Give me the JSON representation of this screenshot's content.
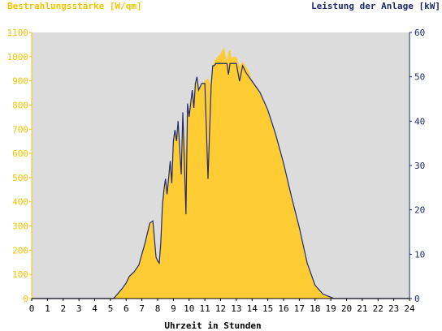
{
  "chart_data": {
    "type": "area",
    "title_left": "Bestrahlungsstärke [W/qm]",
    "title_right": "Leistung der Anlage [kW]",
    "xlabel": "Uhrzeit in Stunden",
    "xlim": [
      0,
      24
    ],
    "ylim_left": [
      0,
      1100
    ],
    "ylim_right": [
      0,
      60
    ],
    "x_ticks": [
      0,
      1,
      2,
      3,
      4,
      5,
      6,
      7,
      8,
      9,
      10,
      11,
      12,
      13,
      14,
      15,
      16,
      17,
      18,
      19,
      20,
      21,
      22,
      23,
      24
    ],
    "y_ticks_left": [
      0,
      100,
      200,
      300,
      400,
      500,
      600,
      700,
      800,
      900,
      1000,
      1100
    ],
    "y_ticks_right": [
      0,
      10,
      20,
      30,
      40,
      50,
      60
    ],
    "grid": false,
    "plot_background": "#dcdcdc",
    "colors": {
      "irradiance": "#ffcc33",
      "power": "#1f2a6e",
      "left_axis": "#f5c400",
      "right_axis": "#1f2a6e"
    },
    "series": [
      {
        "axis": "left",
        "x": [
          0,
          5.2,
          5.5,
          5.8,
          6.0,
          6.2,
          6.5,
          6.8,
          7.0,
          7.2,
          7.5,
          7.7,
          7.9,
          8.0,
          8.1,
          8.2,
          8.3,
          8.4,
          8.5,
          8.6,
          8.8,
          8.9,
          9.0,
          9.1,
          9.2,
          9.3,
          9.5,
          9.6,
          9.8,
          9.9,
          10.0,
          10.2,
          10.3,
          10.4,
          10.5,
          10.6,
          10.8,
          11.0,
          11.2,
          11.4,
          11.5,
          11.6,
          11.7,
          11.8,
          12.0,
          12.2,
          12.4,
          12.5,
          12.6,
          12.7,
          12.8,
          13.0,
          13.2,
          13.4,
          13.6,
          13.8,
          14.0,
          14.5,
          15.0,
          15.5,
          16.0,
          16.5,
          17.0,
          17.5,
          18.0,
          18.5,
          19.0,
          19.2,
          19.5,
          20.0,
          20.2,
          24
        ],
        "y": [
          0,
          0,
          20,
          40,
          60,
          90,
          110,
          140,
          180,
          230,
          310,
          320,
          170,
          160,
          150,
          230,
          380,
          450,
          500,
          430,
          570,
          480,
          650,
          700,
          650,
          740,
          520,
          770,
          600,
          800,
          750,
          850,
          780,
          890,
          920,
          860,
          880,
          900,
          910,
          880,
          960,
          980,
          990,
          1000,
          1010,
          1040,
          980,
          1020,
          1030,
          990,
          1000,
          1000,
          960,
          980,
          960,
          940,
          900,
          850,
          780,
          680,
          560,
          420,
          290,
          150,
          60,
          20,
          8,
          0,
          0,
          0,
          0,
          0
        ]
      },
      {
        "axis": "right",
        "x": [
          0,
          5.2,
          5.5,
          5.8,
          6.0,
          6.2,
          6.5,
          6.8,
          7.0,
          7.2,
          7.5,
          7.7,
          7.9,
          8.0,
          8.1,
          8.2,
          8.3,
          8.4,
          8.5,
          8.6,
          8.8,
          8.9,
          9.0,
          9.1,
          9.2,
          9.3,
          9.5,
          9.6,
          9.8,
          9.9,
          10.0,
          10.2,
          10.3,
          10.4,
          10.5,
          10.6,
          10.8,
          11.0,
          11.2,
          11.4,
          11.5,
          11.6,
          11.7,
          11.8,
          12.0,
          12.2,
          12.4,
          12.5,
          12.6,
          12.7,
          12.8,
          13.0,
          13.2,
          13.4,
          13.6,
          13.8,
          14.0,
          14.5,
          15.0,
          15.5,
          16.0,
          16.5,
          17.0,
          17.5,
          18.0,
          18.5,
          19.0,
          19.2,
          19.5,
          20.0,
          20.2,
          24
        ],
        "y": [
          0,
          0,
          1.2,
          2.5,
          3.5,
          5.0,
          6.0,
          7.5,
          10.0,
          12.5,
          17.0,
          17.5,
          9.3,
          8.5,
          8.0,
          12.5,
          20.7,
          24.5,
          27.0,
          23.5,
          31.0,
          26.0,
          35.5,
          38.0,
          35.5,
          40.0,
          28.0,
          42.0,
          19.0,
          44.0,
          41.0,
          47.0,
          43.0,
          48.5,
          50.0,
          47.0,
          48.5,
          48.5,
          27.0,
          48.0,
          52.5,
          52.5,
          53.0,
          53.0,
          53.0,
          53.0,
          53.0,
          50.5,
          53.0,
          53.0,
          53.0,
          53.0,
          49.0,
          52.5,
          51.0,
          50.0,
          49.0,
          46.5,
          42.5,
          37.0,
          30.5,
          23.0,
          16.0,
          8.0,
          3.0,
          1.0,
          0.3,
          0,
          0,
          0,
          0,
          0
        ]
      }
    ]
  }
}
